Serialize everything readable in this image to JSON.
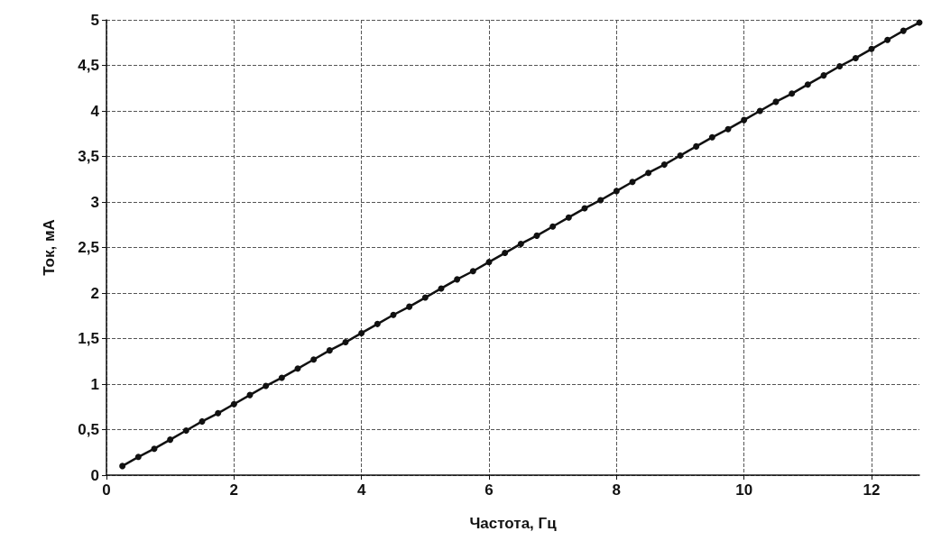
{
  "chart_data": {
    "type": "line",
    "xlabel": "Частота, Гц",
    "ylabel": "Ток, мА",
    "xlim": [
      0,
      12.75
    ],
    "xticks": [
      0,
      2,
      4,
      6,
      8,
      10,
      12
    ],
    "ylim": [
      0,
      5
    ],
    "yticks": [
      0,
      {
        "value": 0.5,
        "label": "0,5"
      },
      1,
      {
        "value": 1.5,
        "label": "1,5"
      },
      2,
      {
        "value": 2.5,
        "label": "2,5"
      },
      3,
      {
        "value": 3.5,
        "label": "3,5"
      },
      4,
      {
        "value": 4.5,
        "label": "4,5"
      },
      5
    ],
    "grid": true,
    "marker": "circle",
    "line_style": "solid",
    "series": [
      {
        "color": "#111111",
        "x": [
          0.25,
          0.5,
          0.75,
          1,
          1.25,
          1.5,
          1.75,
          2,
          2.25,
          2.5,
          2.75,
          3,
          3.25,
          3.5,
          3.75,
          4,
          4.25,
          4.5,
          4.75,
          5,
          5.25,
          5.5,
          5.75,
          6,
          6.25,
          6.5,
          6.75,
          7,
          7.25,
          7.5,
          7.75,
          8,
          8.25,
          8.5,
          8.75,
          9,
          9.25,
          9.5,
          9.75,
          10,
          10.25,
          10.5,
          10.75,
          11,
          11.25,
          11.5,
          11.75,
          12,
          12.25,
          12.5,
          12.75
        ],
        "values": [
          0.1,
          0.2,
          0.29,
          0.39,
          0.49,
          0.59,
          0.68,
          0.78,
          0.88,
          0.98,
          1.07,
          1.17,
          1.27,
          1.37,
          1.46,
          1.56,
          1.66,
          1.76,
          1.85,
          1.95,
          2.05,
          2.15,
          2.24,
          2.34,
          2.44,
          2.54,
          2.63,
          2.73,
          2.83,
          2.93,
          3.02,
          3.12,
          3.22,
          3.32,
          3.41,
          3.51,
          3.61,
          3.71,
          3.8,
          3.9,
          4.0,
          4.1,
          4.19,
          4.29,
          4.39,
          4.49,
          4.58,
          4.68,
          4.78,
          4.88,
          4.97
        ]
      }
    ]
  }
}
